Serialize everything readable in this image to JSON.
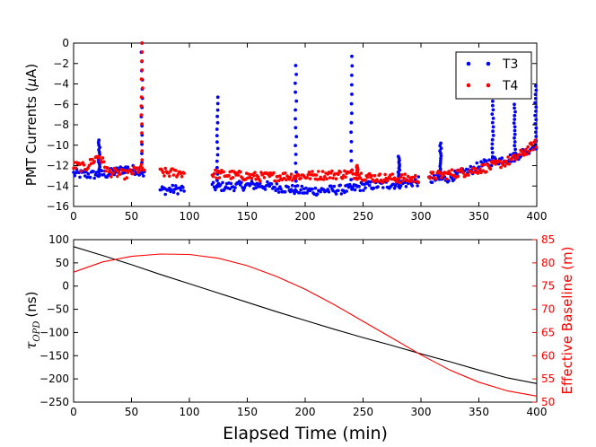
{
  "colors": {
    "t3": "#0000ff",
    "t4": "#ff0000",
    "opd": "#000000",
    "baseline": "#ff0000"
  },
  "chart_data": [
    {
      "type": "scatter",
      "title": "",
      "xlabel": "",
      "ylabel_text": "PMT Currents (",
      "ylabel_symbol": "μ",
      "ylabel_unit": "A)",
      "xlim": [
        0,
        400
      ],
      "ylim": [
        -16,
        0
      ],
      "xticks": [
        "0",
        "50",
        "100",
        "150",
        "200",
        "250",
        "300",
        "350",
        "400"
      ],
      "yticks": [
        "0",
        "−2",
        "−4",
        "−6",
        "−8",
        "−10",
        "−12",
        "−14",
        "−16"
      ],
      "legend": {
        "position": "top-right",
        "entries": [
          "T3",
          "T4"
        ]
      },
      "series": [
        {
          "name": "T3",
          "base": [
            [
              0,
              -12.8
            ],
            [
              15,
              -12.9
            ],
            [
              30,
              -12.8
            ],
            [
              45,
              -12.3
            ],
            [
              58,
              -12.5
            ],
            [
              75,
              -14.4
            ],
            [
              95,
              -14.3
            ],
            [
              120,
              -14.1
            ],
            [
              160,
              -13.9
            ],
            [
              200,
              -14.5
            ],
            [
              240,
              -14.3
            ],
            [
              250,
              -14.0
            ],
            [
              280,
              -13.8
            ],
            [
              295,
              -13.6
            ],
            [
              305,
              -13.4
            ],
            [
              320,
              -13.3
            ],
            [
              340,
              -12.6
            ],
            [
              360,
              -11.6
            ],
            [
              380,
              -11.2
            ],
            [
              390,
              -10.6
            ],
            [
              400,
              -9.9
            ]
          ],
          "gaps": [
            [
              62,
              74
            ],
            [
              96,
              119
            ],
            [
              298,
              306
            ]
          ],
          "spikes": [
            [
              22,
              -9.5
            ],
            [
              59,
              0
            ],
            [
              124,
              -5.3
            ],
            [
              192,
              -2.2
            ],
            [
              240,
              -1.3
            ],
            [
              281,
              -11.1
            ],
            [
              317,
              -9.8
            ],
            [
              362,
              -5.7
            ],
            [
              381,
              -6.0
            ],
            [
              399,
              -4.2
            ]
          ]
        },
        {
          "name": "T4",
          "base": [
            [
              0,
              -12.0
            ],
            [
              10,
              -12.2
            ],
            [
              22,
              -11.0
            ],
            [
              30,
              -12.6
            ],
            [
              45,
              -12.9
            ],
            [
              58,
              -12.3
            ],
            [
              75,
              -12.7
            ],
            [
              95,
              -12.7
            ],
            [
              120,
              -12.8
            ],
            [
              160,
              -13.1
            ],
            [
              200,
              -13.0
            ],
            [
              240,
              -12.8
            ],
            [
              260,
              -13.2
            ],
            [
              295,
              -13.3
            ],
            [
              305,
              -13.1
            ],
            [
              320,
              -12.9
            ],
            [
              340,
              -12.6
            ],
            [
              360,
              -12.1
            ],
            [
              380,
              -11.4
            ],
            [
              400,
              -9.8
            ]
          ],
          "gaps": [
            [
              62,
              74
            ],
            [
              96,
              119
            ],
            [
              298,
              306
            ]
          ],
          "spikes": [
            [
              59,
              0
            ],
            [
              245,
              -12.0
            ]
          ]
        }
      ]
    },
    {
      "type": "line",
      "title": "",
      "xlabel": "Elapsed Time (min)",
      "ylabel_symbol": "τ",
      "ylabel_sub": "OPD",
      "ylabel_unit": "(ns)",
      "ylabel_right": "Effective Baseline (m)",
      "xlim": [
        0,
        400
      ],
      "ylim": [
        -250,
        100
      ],
      "ylim_right": [
        50,
        85
      ],
      "xticks": [
        "0",
        "50",
        "100",
        "150",
        "200",
        "250",
        "300",
        "350",
        "400"
      ],
      "yticks": [
        "100",
        "50",
        "0",
        "−50",
        "−100",
        "−150",
        "−200",
        "−250"
      ],
      "yticks_right": [
        "85",
        "80",
        "75",
        "70",
        "65",
        "60",
        "55",
        "50"
      ],
      "series": [
        {
          "name": "tau_OPD",
          "axis": "left",
          "x": [
            0,
            25,
            50,
            75,
            100,
            125,
            150,
            175,
            200,
            225,
            250,
            275,
            300,
            325,
            350,
            375,
            400
          ],
          "values": [
            85,
            66,
            46,
            25,
            5,
            -15,
            -35,
            -55,
            -74,
            -93,
            -111,
            -128,
            -146,
            -163,
            -181,
            -198,
            -210
          ]
        },
        {
          "name": "Effective Baseline",
          "axis": "right",
          "x": [
            0,
            25,
            50,
            75,
            100,
            125,
            150,
            175,
            200,
            225,
            250,
            275,
            300,
            325,
            350,
            375,
            400
          ],
          "values": [
            78,
            80.2,
            81.4,
            81.9,
            81.8,
            81.0,
            79.4,
            77.1,
            74.3,
            71.0,
            67.4,
            63.8,
            60.2,
            56.9,
            54.3,
            52.4,
            51.3
          ]
        }
      ]
    }
  ]
}
